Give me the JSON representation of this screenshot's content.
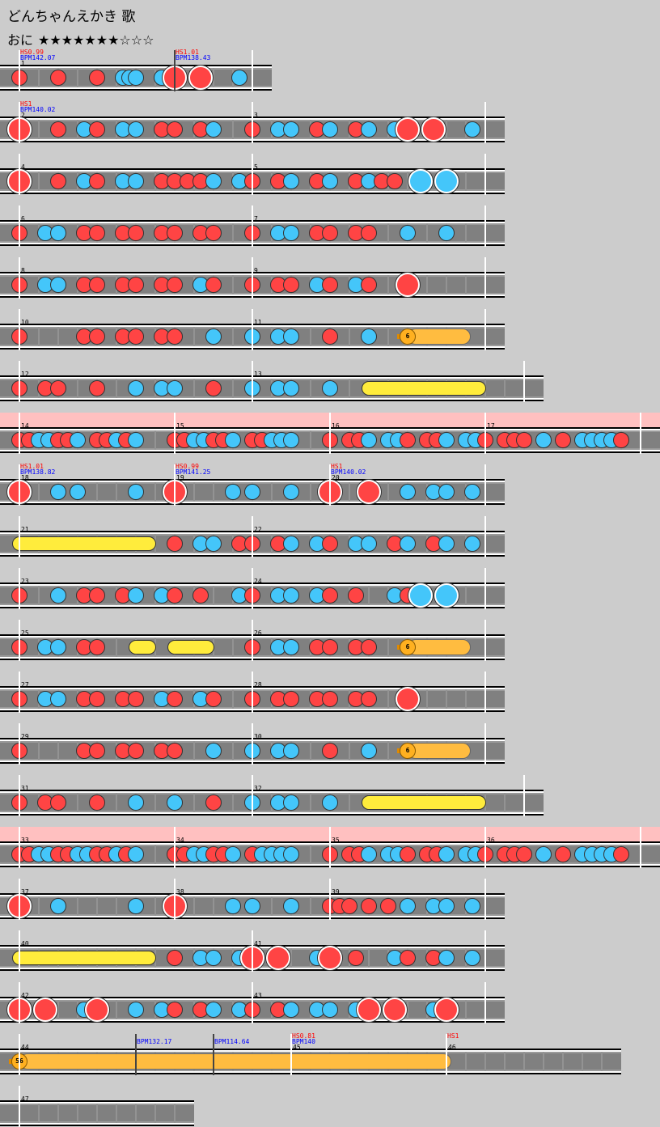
{
  "title": "どんちゃんえかき 歌",
  "difficulty": {
    "name": "おに",
    "stars": "★★★★★★★☆☆☆",
    "level": 7,
    "max": 10
  },
  "colors": {
    "don": "#ff4444",
    "ka": "#44c6fa",
    "roll": "#ffec3c",
    "balloon": "#ffbc40",
    "gogo": "#ffc0c0",
    "hs": "#ff0000",
    "bpm": "#0000ff"
  },
  "rows": [
    {
      "measures": [
        {
          "num": "1",
          "pos": 0,
          "hs": "HS0.99",
          "bpm": "BPM142.07"
        }
      ],
      "changes": [
        {
          "pos": 48,
          "hs": "HS1.01",
          "bpm": "BPM138.43"
        }
      ],
      "end": 72,
      "notes": "0d 12d 24d 32k 34k 36k 44k 48D 56D 68k"
    },
    {
      "measures": [
        {
          "num": "2",
          "pos": 0,
          "hs": "HS1",
          "bpm": "BPM140.02"
        },
        {
          "num": "3",
          "pos": 72
        }
      ],
      "end": 144,
      "notes": "0D 12d 20k 24d 32k 36k 44d 48d 56d 60k 72d 80k 84k 92d 96k 104d 108k 116k 120D 128D 140k"
    },
    {
      "measures": [
        {
          "num": "4",
          "pos": 0
        },
        {
          "num": "5",
          "pos": 72
        }
      ],
      "end": 144,
      "notes": "0D 12d 20k 24d 32k 36k 44d 48d 52d 56d 60k 68k 72d 80d 84k 92d 96k 104d 108k 112d 116d 124K 132K"
    },
    {
      "measures": [
        {
          "num": "6",
          "pos": 0
        },
        {
          "num": "7",
          "pos": 72
        }
      ],
      "end": 144,
      "notes": "0d 8k 12k 20d 24d 32d 36d 44d 48d 56d 60d 72d 80k 84k 92d 96d 104d 108d 120k 132k"
    },
    {
      "measures": [
        {
          "num": "8",
          "pos": 0
        },
        {
          "num": "9",
          "pos": 72
        }
      ],
      "end": 144,
      "notes": "0d 8k 12k 20d 24d 32d 36d 44d 48d 56k 60d 72d 80d 84d 92k 96d 104k 108d 120D"
    },
    {
      "measures": [
        {
          "num": "10",
          "pos": 0
        },
        {
          "num": "11",
          "pos": 72
        }
      ],
      "end": 144,
      "notes": "0d 20d 24d 32d 36d 44d 48d 60k 72k 80k 84k 96d 108k",
      "rolls": [
        {
          "type": "balloon",
          "start": 120,
          "end": 137,
          "count": "6"
        }
      ]
    },
    {
      "measures": [
        {
          "num": "12",
          "pos": 0
        },
        {
          "num": "13",
          "pos": 72
        }
      ],
      "end": 156,
      "notes": "0d 8d 12d 24d 36k 44k 48k 60d 72k 80k 84k 96k",
      "rolls": [
        {
          "type": "roll",
          "start": 108,
          "end": 142
        }
      ]
    },
    {
      "gogo": true,
      "measures": [
        {
          "num": "14",
          "pos": 0
        },
        {
          "num": "15",
          "pos": 72
        },
        {
          "num": "16",
          "pos": 144
        },
        {
          "num": "17",
          "pos": 216
        }
      ],
      "end": 288,
      "notes": "0d 4.5d 9k 13.5k 18d 22.5d 27k 36d 40.5d 45k 49.5d 54k 72d 76.5d 81k 85.5k 90d 94.5d 99k 108d 112.5d 117k 121.5k 126k 144d 153d 157.5d 162k 171k 175.5k 180d 189d 193.5d 198k 207k 211.5k 216d 225d 229.5d 234d 243k 252d 261k 265.5k 270k 274.5k 279d"
    },
    {
      "measures": [
        {
          "num": "18",
          "pos": 0,
          "hs": "HS1.01",
          "bpm": "BPM138.82"
        },
        {
          "num": "19",
          "pos": 72,
          "hs": "HS0.99",
          "bpm": "BPM141.25"
        },
        {
          "num": "20",
          "pos": 144,
          "hs": "HS1",
          "bpm": "BPM140.02"
        }
      ],
      "end": 216,
      "notes": "0D 18k 27k 54k 72D 99k 108k 126k 144D 162D 180k 192k 198k 210k"
    },
    {
      "measures": [
        {
          "num": "21",
          "pos": 0
        },
        {
          "num": "22",
          "pos": 72
        }
      ],
      "end": 144,
      "notes": "48d 56k 60k 68d 72d 80d 84k 92k 96d 104k 108k 116d 120k 128d 132k 140k",
      "rolls": [
        {
          "type": "roll",
          "start": 0,
          "end": 40
        }
      ]
    },
    {
      "measures": [
        {
          "num": "23",
          "pos": 0
        },
        {
          "num": "24",
          "pos": 72
        }
      ],
      "end": 144,
      "notes": "0d 12k 20d 24d 32d 36k 44k 48d 56d 68k 72d 80k 84k 92k 96d 104d 116k 120d 124K 132K"
    },
    {
      "measures": [
        {
          "num": "25",
          "pos": 0
        },
        {
          "num": "26",
          "pos": 72
        }
      ],
      "end": 144,
      "notes": "0d 8k 12k 20d 24d 72d 80k 84k 92d 96d 104d 108d",
      "rolls": [
        {
          "type": "roll",
          "start": 36,
          "end": 40
        },
        {
          "type": "roll",
          "start": 48,
          "end": 58
        },
        {
          "type": "balloon",
          "start": 120,
          "end": 137,
          "count": "6"
        }
      ]
    },
    {
      "measures": [
        {
          "num": "27",
          "pos": 0
        },
        {
          "num": "28",
          "pos": 72
        }
      ],
      "end": 144,
      "notes": "0d 8k 12k 20d 24d 32d 36d 44k 48d 56k 60d 72d 80d 84d 92d 96d 104d 108d 120D"
    },
    {
      "measures": [
        {
          "num": "29",
          "pos": 0
        },
        {
          "num": "30",
          "pos": 72
        }
      ],
      "end": 144,
      "notes": "0d 20d 24d 32d 36d 44d 48d 60k 72k 80k 84k 96d 108k",
      "rolls": [
        {
          "type": "balloon",
          "start": 120,
          "end": 137,
          "count": "6"
        }
      ]
    },
    {
      "measures": [
        {
          "num": "31",
          "pos": 0
        },
        {
          "num": "32",
          "pos": 72
        }
      ],
      "end": 156,
      "notes": "0d 8d 12d 24d 36k 48k 60d 72k 80k 84k 96k",
      "rolls": [
        {
          "type": "roll",
          "start": 108,
          "end": 142
        }
      ]
    },
    {
      "gogo": true,
      "measures": [
        {
          "num": "33",
          "pos": 0
        },
        {
          "num": "34",
          "pos": 72
        },
        {
          "num": "35",
          "pos": 144
        },
        {
          "num": "36",
          "pos": 216
        }
      ],
      "end": 288,
      "notes": "0d 4.5d 9k 13.5k 18d 22.5d 27k 31.5k 36d 40.5d 45k 49.5d 54k 72d 76.5d 81k 85.5k 90d 94.5d 99k 108d 112.5k 117k 121.5k 126k 144d 153d 157.5d 162k 171k 175.5k 180d 189d 193.5d 198k 207k 211.5k 216d 225d 229.5d 234d 243k 252d 261k 265.5k 270k 274.5k 279d"
    },
    {
      "measures": [
        {
          "num": "37",
          "pos": 0
        },
        {
          "num": "38",
          "pos": 72
        },
        {
          "num": "39",
          "pos": 144
        }
      ],
      "end": 216,
      "notes": "0D 18k 54k 72D 99k 108k 126k 144d 148.5d 153d 162d 171d 180k 192k 198k 210k"
    },
    {
      "measures": [
        {
          "num": "40",
          "pos": 0
        },
        {
          "num": "41",
          "pos": 72
        }
      ],
      "end": 144,
      "notes": "48d 56k 60k 68k 72D 80D 92k 96D 104d 116k 120d 128d 132k 140k",
      "rolls": [
        {
          "type": "roll",
          "start": 0,
          "end": 40
        }
      ]
    },
    {
      "measures": [
        {
          "num": "42",
          "pos": 0
        },
        {
          "num": "43",
          "pos": 72
        }
      ],
      "end": 144,
      "notes": "0D 8D 20k 24D 36k 44k 48d 56d 60k 68k 72d 80d 84k 92k 96k 104k 108D 116D 128k 132D"
    },
    {
      "measures": [
        {
          "num": "44",
          "pos": 0
        },
        {
          "num": "45",
          "pos": 84,
          "hs": "HS0.81",
          "bpm": "BPM140"
        },
        {
          "num": "46",
          "pos": 132,
          "hs": "HS1"
        }
      ],
      "changes": [
        {
          "pos": 36,
          "bpm": "BPM132.17"
        },
        {
          "pos": 60,
          "bpm": "BPM114.64"
        }
      ],
      "end": 186,
      "end_line": false,
      "notes": "",
      "rolls": [
        {
          "type": "balloon",
          "start": 0,
          "end": 131,
          "count": "56"
        }
      ]
    },
    {
      "measures": [
        {
          "num": "47",
          "pos": 0
        }
      ],
      "end": 54,
      "end_line": false,
      "notes": ""
    }
  ]
}
